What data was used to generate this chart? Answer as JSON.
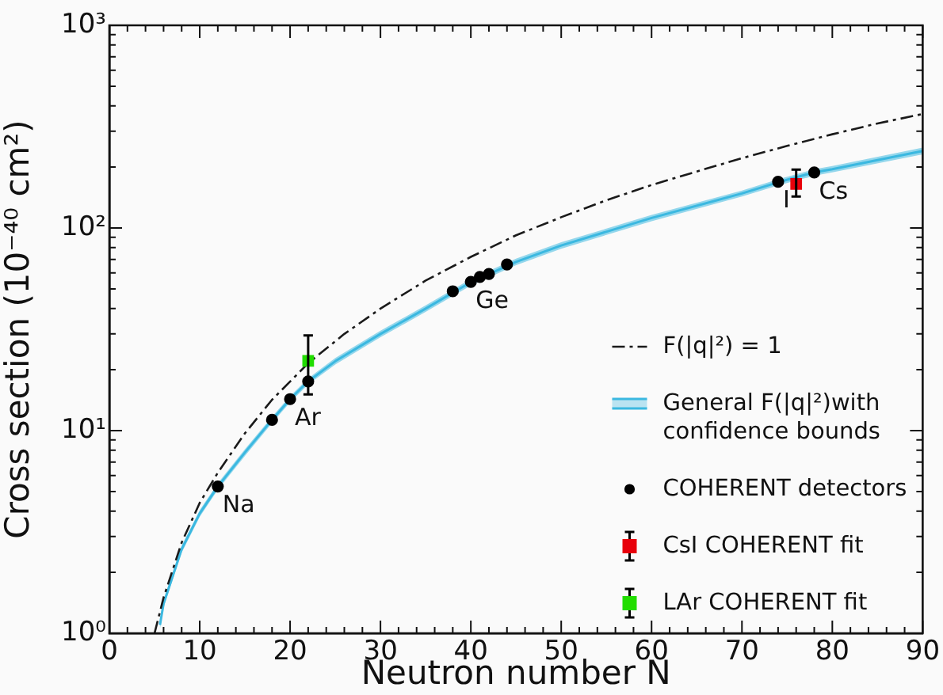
{
  "chart_data": {
    "type": "line",
    "xlabel": "Neutron number N",
    "ylabel": "Cross section (10⁻⁴⁰ cm²)",
    "xlim": [
      0,
      90
    ],
    "ylim": [
      1,
      1000
    ],
    "log": "y",
    "grid": false,
    "legend": "bottom right",
    "xticks": [
      0,
      {
        "value": 2,
        "label": null
      },
      {
        "value": 4,
        "label": null
      },
      {
        "value": 6,
        "label": null
      },
      {
        "value": 8,
        "label": null
      },
      10,
      {
        "value": 12,
        "label": null
      },
      {
        "value": 14,
        "label": null
      },
      {
        "value": 16,
        "label": null
      },
      {
        "value": 18,
        "label": null
      },
      20,
      {
        "value": 22,
        "label": null
      },
      {
        "value": 24,
        "label": null
      },
      {
        "value": 26,
        "label": null
      },
      {
        "value": 28,
        "label": null
      },
      30,
      {
        "value": 32,
        "label": null
      },
      {
        "value": 34,
        "label": null
      },
      {
        "value": 36,
        "label": null
      },
      {
        "value": 38,
        "label": null
      },
      40,
      {
        "value": 42,
        "label": null
      },
      {
        "value": 44,
        "label": null
      },
      {
        "value": 46,
        "label": null
      },
      {
        "value": 48,
        "label": null
      },
      50,
      {
        "value": 52,
        "label": null
      },
      {
        "value": 54,
        "label": null
      },
      {
        "value": 56,
        "label": null
      },
      {
        "value": 58,
        "label": null
      },
      60,
      {
        "value": 62,
        "label": null
      },
      {
        "value": 64,
        "label": null
      },
      {
        "value": 66,
        "label": null
      },
      {
        "value": 68,
        "label": null
      },
      70,
      {
        "value": 72,
        "label": null
      },
      {
        "value": 74,
        "label": null
      },
      {
        "value": 76,
        "label": null
      },
      {
        "value": 78,
        "label": null
      },
      80,
      {
        "value": 82,
        "label": null
      },
      {
        "value": 84,
        "label": null
      },
      {
        "value": 86,
        "label": null
      },
      {
        "value": 88,
        "label": null
      },
      90
    ],
    "yticks": [
      {
        "value": 1,
        "label": "10⁰"
      },
      {
        "value": 2,
        "label": null
      },
      {
        "value": 3,
        "label": null
      },
      {
        "value": 4,
        "label": null
      },
      {
        "value": 5,
        "label": null
      },
      {
        "value": 6,
        "label": null
      },
      {
        "value": 7,
        "label": null
      },
      {
        "value": 8,
        "label": null
      },
      {
        "value": 9,
        "label": null
      },
      {
        "value": 10,
        "label": "10¹"
      },
      {
        "value": 20,
        "label": null
      },
      {
        "value": 30,
        "label": null
      },
      {
        "value": 40,
        "label": null
      },
      {
        "value": 50,
        "label": null
      },
      {
        "value": 60,
        "label": null
      },
      {
        "value": 70,
        "label": null
      },
      {
        "value": 80,
        "label": null
      },
      {
        "value": 90,
        "label": null
      },
      {
        "value": 100,
        "label": "10²"
      },
      {
        "value": 200,
        "label": null
      },
      {
        "value": 300,
        "label": null
      },
      {
        "value": 400,
        "label": null
      },
      {
        "value": 500,
        "label": null
      },
      {
        "value": 600,
        "label": null
      },
      {
        "value": 700,
        "label": null
      },
      {
        "value": 800,
        "label": null
      },
      {
        "value": 900,
        "label": null
      },
      {
        "value": 1000,
        "label": "10³"
      }
    ],
    "series": [
      {
        "name": "F(|q|²) = 1",
        "color": "#1a1a1a",
        "line_style": "dashed",
        "marker": "none",
        "x": [
          5,
          6,
          8,
          10,
          12,
          15,
          18,
          22,
          26,
          30,
          35,
          40,
          45,
          50,
          55,
          60,
          65,
          70,
          75,
          80,
          85,
          90
        ],
        "values": [
          1.0,
          1.5,
          2.8,
          4.4,
          6.2,
          9.7,
          14.2,
          21.5,
          30,
          40,
          55,
          72,
          92,
          113,
          137,
          163,
          190,
          221,
          254,
          290,
          328,
          365
        ]
      },
      {
        "name": "General F(|q|²)with confidence bounds",
        "color": "#3bb8e0",
        "line_style": "solid",
        "marker": "none",
        "x": [
          5.6,
          6,
          8,
          10,
          12,
          15,
          18,
          20,
          22,
          25,
          30,
          35,
          40,
          45,
          50,
          60,
          70,
          74,
          78,
          80,
          90
        ],
        "values": [
          1.1,
          1.4,
          2.6,
          3.9,
          5.3,
          7.8,
          11.3,
          14.3,
          17.5,
          22,
          30,
          40,
          54,
          68,
          82,
          112,
          148,
          168,
          188,
          195,
          240
        ],
        "lower": [
          1.05,
          1.34,
          2.5,
          3.75,
          5.1,
          7.5,
          10.9,
          13.8,
          16.9,
          21.2,
          28.9,
          38.5,
          52,
          65.5,
          79,
          108,
          143,
          162,
          181,
          188,
          231
        ],
        "upper": [
          1.15,
          1.46,
          2.7,
          4.05,
          5.5,
          8.1,
          11.7,
          14.8,
          18.1,
          22.8,
          31.1,
          41.5,
          56,
          70.5,
          85,
          116,
          153,
          174,
          195,
          202,
          249
        ]
      },
      {
        "name": "COHERENT detectors",
        "type": "scatter",
        "color": "#000000",
        "marker": "circle",
        "x": [
          12,
          18,
          20,
          22,
          38,
          40,
          41,
          42,
          44,
          74,
          78
        ],
        "values": [
          5.3,
          11.3,
          14.3,
          17.5,
          48.7,
          54.2,
          57.3,
          59.3,
          66.1,
          169,
          188
        ]
      },
      {
        "name": "CsI COHERENT fit",
        "type": "scatter",
        "color": "#e8000b",
        "marker": "square",
        "x": [
          76
        ],
        "values": [
          165
        ],
        "errors": [
          [
            143,
            194
          ]
        ]
      },
      {
        "name": "LAr COHERENT fit",
        "type": "scatter",
        "color": "#22dd00",
        "marker": "square",
        "x": [
          22
        ],
        "values": [
          22.1
        ],
        "errors": [
          [
            15.1,
            29.5
          ]
        ]
      }
    ],
    "annotations": [
      {
        "text": "Na",
        "x": 12,
        "y": 5.3
      },
      {
        "text": "Ar",
        "x": 20,
        "y": 14.3
      },
      {
        "text": "Ge",
        "x": 40,
        "y": 54.2
      },
      {
        "text": "I",
        "x": 74,
        "y": 169
      },
      {
        "text": "Cs",
        "x": 78,
        "y": 188
      }
    ]
  }
}
